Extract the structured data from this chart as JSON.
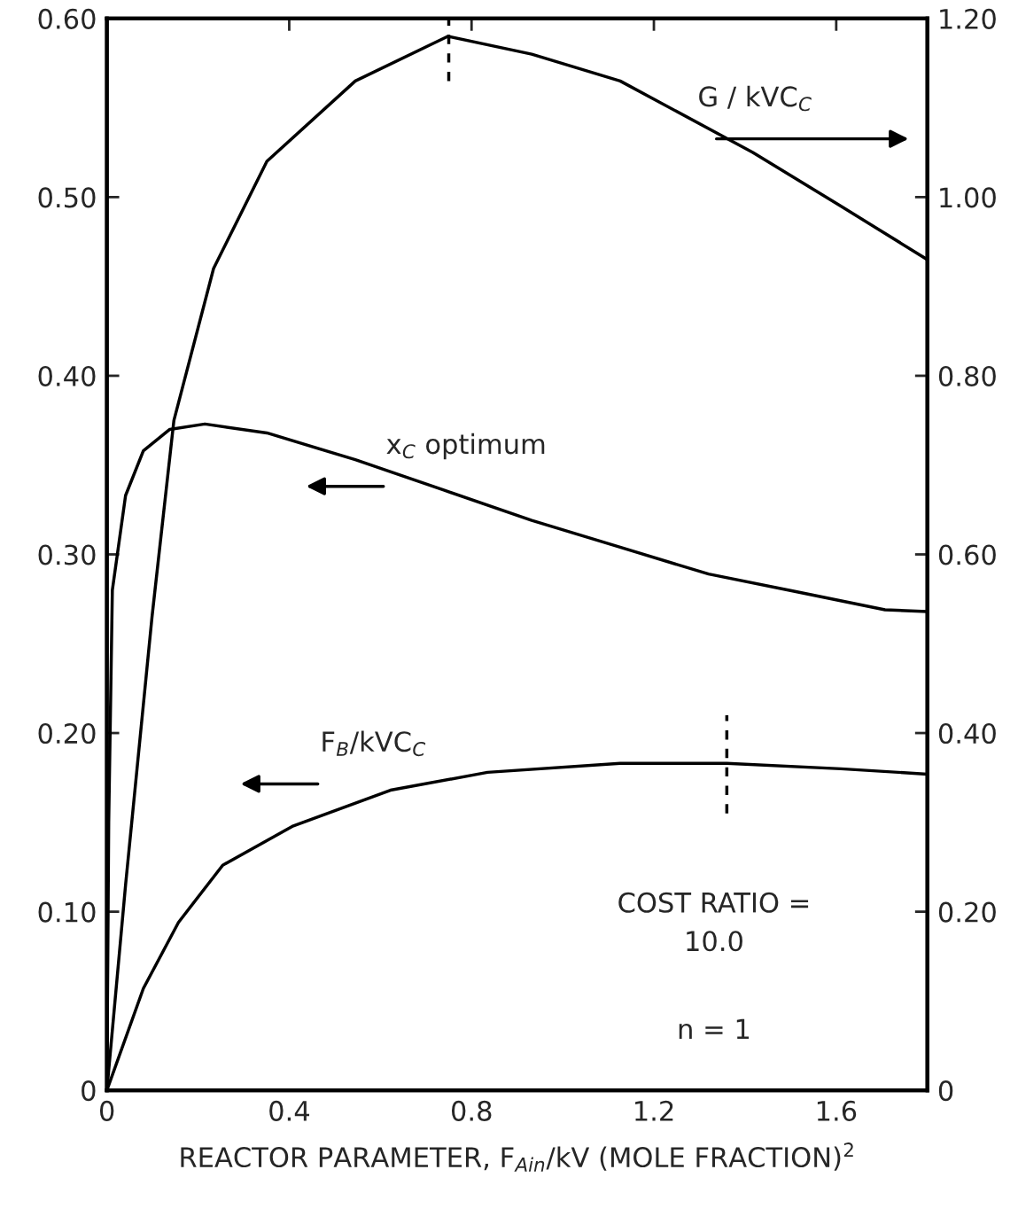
{
  "chart_data": {
    "type": "line",
    "xlabel": "REACTOR PARAMETER, F$_{Ain}$/kV (MOLE FRACTION)$^{2}$",
    "xlim": [
      0,
      1.8
    ],
    "xticks": [
      0,
      0.4,
      0.8,
      1.2,
      1.6
    ],
    "ylim": [
      0,
      0.6
    ],
    "yticks": [
      0,
      {
        "value": 0.1,
        "label": "0.10"
      },
      {
        "value": 0.2,
        "label": "0.20"
      },
      {
        "value": 0.3,
        "label": "0.30"
      },
      {
        "value": 0.4,
        "label": "0.40"
      },
      {
        "value": 0.5,
        "label": "0.50"
      },
      {
        "value": 0.6,
        "label": "0.60"
      }
    ],
    "y2lim": [
      0,
      1.2
    ],
    "y2ticks": [
      0,
      {
        "value": 0.2,
        "label": "0.20"
      },
      {
        "value": 0.4,
        "label": "0.40"
      },
      {
        "value": 0.6,
        "label": "0.60"
      },
      {
        "value": 0.8,
        "label": "0.80"
      },
      {
        "value": 1.0,
        "label": "1.00"
      },
      {
        "value": 1.2,
        "label": "1.20"
      }
    ],
    "grid": false,
    "legend": false,
    "marker": "none",
    "line_style": "solid",
    "series": [
      {
        "name": "G / kVC$_{C}$",
        "color": "#000000",
        "axis": "y2",
        "x": [
          0,
          0.041,
          0.099,
          0.147,
          0.234,
          0.351,
          0.545,
          0.748,
          0.932,
          1.126,
          1.417,
          1.61,
          1.8
        ],
        "values": [
          0,
          0.23,
          0.53,
          0.75,
          0.92,
          1.04,
          1.13,
          1.18,
          1.16,
          1.13,
          1.05,
          0.99,
          0.93
        ]
      },
      {
        "name": "x$_{C}$ optimum",
        "color": "#000000",
        "axis": "y",
        "x": [
          0,
          0.004,
          0.012,
          0.041,
          0.08,
          0.138,
          0.215,
          0.351,
          0.545,
          0.739,
          0.932,
          1.126,
          1.32,
          1.514,
          1.707,
          1.8
        ],
        "values": [
          0,
          0.15,
          0.28,
          0.333,
          0.358,
          0.37,
          0.373,
          0.368,
          0.353,
          0.336,
          0.319,
          0.304,
          0.289,
          0.279,
          0.269,
          0.268
        ]
      },
      {
        "name": "F$_{B}$/kVC$_{C}$",
        "color": "#000000",
        "axis": "y",
        "x": [
          0,
          0.08,
          0.157,
          0.254,
          0.409,
          0.622,
          0.835,
          1.126,
          1.36,
          1.61,
          1.8
        ],
        "values": [
          0,
          0.057,
          0.094,
          0.126,
          0.148,
          0.168,
          0.178,
          0.183,
          0.183,
          0.18,
          0.177
        ]
      },
      {
        "color": "#000000",
        "axis": "y2",
        "line_style": "dashed",
        "x": [
          0.75,
          0.75
        ],
        "values": [
          1.13,
          1.2
        ]
      },
      {
        "color": "#000000",
        "axis": "y",
        "line_style": "dashed",
        "x": [
          1.36,
          1.36
        ],
        "values": [
          0.155,
          0.21
        ]
      }
    ],
    "annotations": [
      "COST RATIO =\n10.0",
      "n = 1"
    ]
  }
}
